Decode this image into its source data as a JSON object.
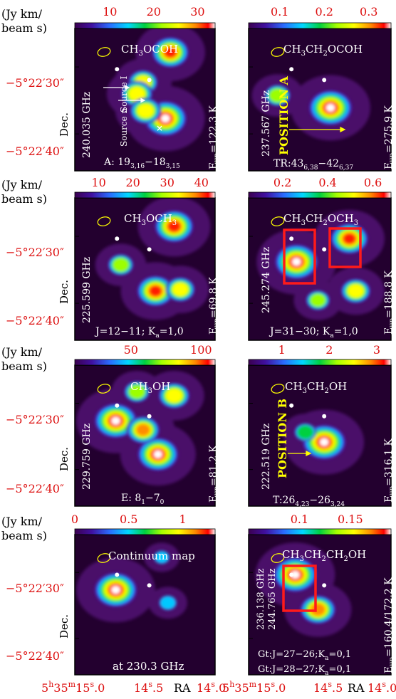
{
  "chart_data": {
    "type": "heatmap",
    "axes": {
      "flux_unit_line1": "(Jy km/",
      "flux_unit_line2": "beam s)",
      "dec_label": "Dec.",
      "dec_ticks": [
        "−5°22′30″",
        "−5°22′40″"
      ],
      "ra_label": "RA",
      "ra_ticks": [
        "5h35m15.0s",
        "14.5s",
        "14.0s"
      ]
    },
    "panels": [
      {
        "title": "CH₃OCOH",
        "frequency": "240.035 GHz",
        "e_up": "E_up=122.3 K",
        "transition": "A: 19_{3,16}−18_{3,15}",
        "colorbar_ticks": [
          "10",
          "20",
          "30"
        ],
        "colorbar_values": [
          10,
          20,
          30
        ],
        "colorbar_range": [
          2,
          34
        ],
        "annotations": [
          "Source I",
          "Source n"
        ],
        "emission": [
          {
            "ra": 14.28,
            "dec": 27.6,
            "amp": 0.85
          },
          {
            "ra": 14.5,
            "dec": 31.5,
            "amp": 0.65
          },
          {
            "ra": 14.55,
            "dec": 33.0,
            "amp": 0.7
          },
          {
            "ra": 14.32,
            "dec": 36.2,
            "amp": 1.0
          },
          {
            "ra": 14.48,
            "dec": 35.2,
            "amp": 0.7
          }
        ]
      },
      {
        "title": "CH₃CH₂OCOH",
        "frequency": "237.567 GHz",
        "e_up": "E_up=275.9 K",
        "transition": "TR:43_{6,38}−42_{6,37}",
        "colorbar_ticks": [
          "0.1",
          "0.2",
          "0.3"
        ],
        "colorbar_values": [
          0.1,
          0.2,
          0.3
        ],
        "colorbar_range": [
          0.03,
          0.35
        ],
        "annotations": [
          "POSITION A"
        ],
        "emission": [
          {
            "ra": 14.4,
            "dec": 34.8,
            "amp": 1.0
          },
          {
            "ra": 14.82,
            "dec": 33.2,
            "amp": 0.55
          }
        ]
      },
      {
        "title": "CH₃OCH₃",
        "frequency": "225.599 GHz",
        "e_up": "E_up=69.8 K",
        "transition": "J=12−11; K_a=1,0",
        "colorbar_ticks": [
          "10",
          "20",
          "30",
          "40"
        ],
        "colorbar_values": [
          10,
          20,
          30,
          40
        ],
        "colorbar_range": [
          3,
          44
        ],
        "emission": [
          {
            "ra": 14.25,
            "dec": 28.2,
            "amp": 0.9
          },
          {
            "ra": 14.68,
            "dec": 33.2,
            "amp": 0.55
          },
          {
            "ra": 14.4,
            "dec": 36.6,
            "amp": 0.85
          },
          {
            "ra": 14.2,
            "dec": 36.4,
            "amp": 0.65
          }
        ]
      },
      {
        "title": "CH₃CH₂OCH₃",
        "frequency": "245.274 GHz",
        "e_up": "E_up=188.8 K",
        "transition": "J=31−30; K_a=1,0",
        "colorbar_ticks": [
          "0.2",
          "0.4",
          "0.6"
        ],
        "colorbar_values": [
          0.2,
          0.4,
          0.6
        ],
        "colorbar_range": [
          0.05,
          0.68
        ],
        "emission": [
          {
            "ra": 14.67,
            "dec": 32.8,
            "amp": 1.0
          },
          {
            "ra": 14.25,
            "dec": 29.8,
            "amp": 0.85
          },
          {
            "ra": 14.2,
            "dec": 36.6,
            "amp": 0.65
          },
          {
            "ra": 14.5,
            "dec": 37.8,
            "amp": 0.5
          }
        ]
      },
      {
        "title": "CH₃OH",
        "frequency": "229.759 GHz",
        "e_up": "E_up=81.2 K",
        "transition": "E: 8_1−7_0",
        "colorbar_ticks": [
          "50",
          "100"
        ],
        "colorbar_values": [
          50,
          100
        ],
        "colorbar_range": [
          10,
          110
        ],
        "emission": [
          {
            "ra": 14.72,
            "dec": 31.8,
            "amp": 1.0
          },
          {
            "ra": 14.38,
            "dec": 36.2,
            "amp": 0.95
          },
          {
            "ra": 14.5,
            "dec": 33.0,
            "amp": 0.75
          },
          {
            "ra": 14.25,
            "dec": 28.5,
            "amp": 0.7
          },
          {
            "ra": 14.55,
            "dec": 28.0,
            "amp": 0.55
          }
        ]
      },
      {
        "title": "CH₃CH₂OH",
        "frequency": "222.519 GHz",
        "e_up": "E_up=316.1 K",
        "transition": "T:26_{4,23}−26_{3,24}",
        "colorbar_ticks": [
          "1",
          "2",
          "3"
        ],
        "colorbar_values": [
          1,
          2,
          3
        ],
        "colorbar_range": [
          0.3,
          3.3
        ],
        "annotations": [
          "POSITION B"
        ],
        "emission": [
          {
            "ra": 14.45,
            "dec": 34.6,
            "amp": 1.0
          },
          {
            "ra": 14.6,
            "dec": 33.3,
            "amp": 0.45
          }
        ]
      },
      {
        "title": "Continuum map",
        "frequency": "",
        "e_up": "",
        "transition": "at 230.3 GHz",
        "colorbar_ticks": [
          "0",
          "0.5",
          "1"
        ],
        "colorbar_values": [
          0,
          0.5,
          1
        ],
        "colorbar_range": [
          0,
          1.3
        ],
        "emission": [
          {
            "ra": 14.72,
            "dec": 31.8,
            "amp": 1.0
          },
          {
            "ra": 14.3,
            "dec": 33.5,
            "amp": 0.35
          },
          {
            "ra": 14.35,
            "dec": 27.5,
            "amp": 0.3
          }
        ]
      },
      {
        "title": "CH₃CH₂CH₂OH",
        "frequency": "236.138 GHz / 244.765 GHz",
        "e_up": "E_up=160.4/172.2 K",
        "transition": "Gt:J=27−26;K_a=0,1 | Gt:J=28−27;K_a=0,1",
        "colorbar_ticks": [
          "0.1",
          "0.15"
        ],
        "colorbar_values": [
          0.1,
          0.15
        ],
        "colorbar_range": [
          0.05,
          0.19
        ],
        "emission": [
          {
            "ra": 14.68,
            "dec": 29.8,
            "amp": 1.0
          },
          {
            "ra": 14.5,
            "dec": 34.4,
            "amp": 0.8
          }
        ]
      }
    ]
  },
  "labels": {
    "p1_title": "CH3OCOH",
    "p1_freq": "240.035 GHz",
    "p1_eup_sub": "up",
    "p1_eup_rest": "=122.3 K",
    "p1_src_i": "Source I",
    "p1_src_n": "Source n",
    "p2_title": "CH3CH2OCOH",
    "p2_freq": "237.567 GHz",
    "p2_eup_rest": "=275.9 K",
    "p2_pos": "POSITION A",
    "p3_title": "CH3OCH3",
    "p3_freq": "225.599 GHz",
    "p3_eup_rest": "=69.8 K",
    "p4_title": "CH3CH2OCH3",
    "p4_freq": "245.274 GHz",
    "p4_eup_rest": "=188.8 K",
    "p5_title": "CH3OH",
    "p5_freq": "229.759 GHz",
    "p5_eup_rest": "=81.2 K",
    "p6_title": "CH3CH2OH",
    "p6_freq": "222.519 GHz",
    "p6_eup_rest": "=316.1 K",
    "p6_pos": "POSITION B",
    "p7_title": "Continuum map",
    "p7_trans": "at 230.3 GHz",
    "p8_title": "CH3CH2CH2OH",
    "p8_freq1": "236.138 GHz",
    "p8_freq2": "244.765 GHz",
    "p8_eup_rest": "=160.4/172.2 K"
  },
  "colors": {
    "tick_red": "#dd1111",
    "map_background": "#23002f",
    "marker": "#ffffff",
    "box": "#ff1a1a",
    "position_text": "#ffff00",
    "beam": "#ffff00"
  }
}
